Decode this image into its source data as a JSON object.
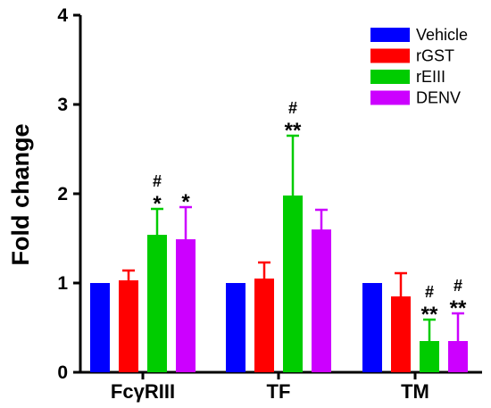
{
  "chart_data": {
    "type": "bar",
    "title": "",
    "xlabel": "",
    "ylabel": "Fold change",
    "ylim": [
      0,
      4
    ],
    "yticks": [
      "0",
      "1",
      "2",
      "3",
      "4"
    ],
    "categories": [
      "FcγRIII",
      "TF",
      "TM"
    ],
    "grid": false,
    "legend_position": "top-right",
    "series": [
      {
        "name": "Vehicle",
        "color": "#0000FF",
        "values": [
          1.0,
          1.0,
          1.0
        ],
        "errors": [
          0,
          0,
          0
        ],
        "annotations": [
          [],
          [],
          []
        ]
      },
      {
        "name": "rGST",
        "color": "#FF0000",
        "values": [
          1.03,
          1.05,
          0.85
        ],
        "errors": [
          0.11,
          0.18,
          0.26
        ],
        "annotations": [
          [],
          [],
          []
        ]
      },
      {
        "name": "rEIII",
        "color": "#00CC00",
        "values": [
          1.54,
          1.98,
          0.35
        ],
        "errors": [
          0.29,
          0.67,
          0.24
        ],
        "annotations": [
          [
            "#",
            "*"
          ],
          [
            "#",
            "**"
          ],
          [
            "#",
            "**"
          ]
        ]
      },
      {
        "name": "DENV",
        "color": "#CC00FF",
        "values": [
          1.49,
          1.6,
          0.35
        ],
        "errors": [
          0.36,
          0.22,
          0.31
        ],
        "annotations": [
          [
            "*"
          ],
          [],
          [
            "#",
            "**"
          ]
        ]
      }
    ]
  }
}
